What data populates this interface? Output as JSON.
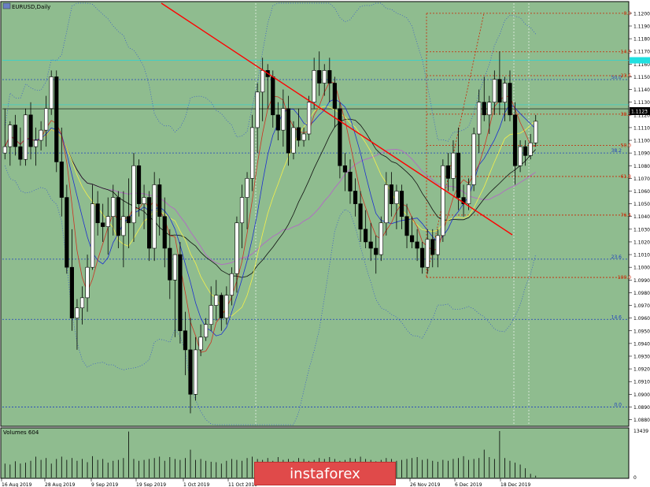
{
  "window": {
    "symbol_title": "EURUSD,Daily",
    "volume_title": "Volumes 604",
    "brand": "instaforex"
  },
  "colors": {
    "chart_bg": "#8fbc8f",
    "up_candle": "#ffffff",
    "down_candle": "#000000",
    "trendline": "#ff0000",
    "fib_red": "#cc2200",
    "fib_blue": "#1f3fbf",
    "ma_red": "#cc3322",
    "ma_blue": "#1c2fd0",
    "ma_yellow": "#f4f04a",
    "ma_black": "#111111",
    "ma_purple": "#b070c0",
    "bollinger": "#3050d0",
    "price_tag": "#20e0e0",
    "brand_bg": "#e04a4a"
  },
  "price_axis": {
    "labels": [
      "1.1200",
      "1.1190",
      "1.1180",
      "1.1170",
      "1.1160",
      "1.1150",
      "1.1140",
      "1.1130",
      "1.1120",
      "1.1110",
      "1.1100",
      "1.1090",
      "1.1080",
      "1.1070",
      "1.1060",
      "1.1050",
      "1.1040",
      "1.1030",
      "1.1020",
      "1.1010",
      "1.1000",
      "1.0990",
      "1.0980",
      "1.0970",
      "1.0960",
      "1.0950",
      "1.0940",
      "1.0930",
      "1.0920",
      "1.0910",
      "1.0900",
      "1.0890",
      "1.0880"
    ],
    "current_price": "1.1123"
  },
  "volume_axis": {
    "labels": [
      "13439",
      "0"
    ]
  },
  "time_axis": {
    "labels": [
      "16 Aug 2019",
      "28 Aug 2019",
      "9 Sep 2019",
      "19 Sep 2019",
      "1 Oct 2019",
      "11 Oct 2019",
      "26 Nov 2019",
      "6 Dec 2019",
      "18 Dec 2019"
    ]
  },
  "fib_levels_right": [
    {
      "label": "0.0",
      "price": 1.12,
      "color": "red"
    },
    {
      "label": "14.6",
      "price": 1.11697,
      "color": "red"
    },
    {
      "label": "23.6",
      "price": 1.11509,
      "color": "red"
    },
    {
      "label": "38.2",
      "price": 1.11206,
      "color": "red"
    },
    {
      "label": "50.0",
      "price": 1.1096,
      "color": "red"
    },
    {
      "label": "61.8",
      "price": 1.10715,
      "color": "red"
    },
    {
      "label": "76.4",
      "price": 1.10411,
      "color": "red"
    },
    {
      "label": "100.0",
      "price": 1.0992,
      "color": "red"
    }
  ],
  "fib_levels_blue": [
    {
      "label": "50.0",
      "price": 1.11478
    },
    {
      "label": "38.2",
      "price": 1.109
    },
    {
      "label": "23.6",
      "price": 1.10064
    },
    {
      "label": "14.6",
      "price": 1.0959
    },
    {
      "label": "0.0",
      "price": 1.089
    }
  ],
  "chart_data": {
    "type": "candlestick",
    "symbol": "EURUSD",
    "timeframe": "Daily",
    "ylim": [
      1.0876,
      1.1208
    ],
    "candles": [
      [
        1.109,
        1.1125,
        1.1085,
        1.1095
      ],
      [
        1.1095,
        1.1115,
        1.108,
        1.1112
      ],
      [
        1.1112,
        1.112,
        1.1088,
        1.1095
      ],
      [
        1.1095,
        1.111,
        1.108,
        1.1085
      ],
      [
        1.1085,
        1.1125,
        1.108,
        1.112
      ],
      [
        1.112,
        1.113,
        1.1085,
        1.1095
      ],
      [
        1.1095,
        1.111,
        1.108,
        1.11
      ],
      [
        1.11,
        1.1115,
        1.1092,
        1.1108
      ],
      [
        1.1108,
        1.1135,
        1.1095,
        1.1125
      ],
      [
        1.1125,
        1.1155,
        1.112,
        1.115
      ],
      [
        1.115,
        1.1155,
        1.1075,
        1.1083
      ],
      [
        1.1083,
        1.111,
        1.104,
        1.1055
      ],
      [
        1.1055,
        1.1065,
        1.0995,
        1.1
      ],
      [
        1.1,
        1.103,
        1.095,
        1.096
      ],
      [
        1.096,
        1.0975,
        1.0935,
        1.0968
      ],
      [
        1.0968,
        1.0985,
        1.0955,
        1.0976
      ],
      [
        1.0976,
        1.101,
        1.0965,
        1.1
      ],
      [
        1.1,
        1.1065,
        1.0998,
        1.105
      ],
      [
        1.105,
        1.106,
        1.1025,
        1.1035
      ],
      [
        1.1035,
        1.105,
        1.102,
        1.1032
      ],
      [
        1.1032,
        1.1055,
        1.101,
        1.104
      ],
      [
        1.104,
        1.1065,
        1.1025,
        1.1055
      ],
      [
        1.1055,
        1.106,
        1.1015,
        1.1025
      ],
      [
        1.1025,
        1.106,
        1.1,
        1.104
      ],
      [
        1.104,
        1.107,
        1.1015,
        1.1035
      ],
      [
        1.1035,
        1.109,
        1.102,
        1.108
      ],
      [
        1.108,
        1.1085,
        1.104,
        1.105
      ],
      [
        1.105,
        1.1065,
        1.103,
        1.1055
      ],
      [
        1.1055,
        1.106,
        1.1005,
        1.1015
      ],
      [
        1.1015,
        1.1075,
        1.1005,
        1.1065
      ],
      [
        1.1065,
        1.107,
        1.1025,
        1.104
      ],
      [
        1.104,
        1.1055,
        1.1,
        1.1015
      ],
      [
        1.1015,
        1.103,
        1.0975,
        1.099
      ],
      [
        1.099,
        1.101,
        1.0945,
        1.101
      ],
      [
        1.101,
        1.102,
        1.094,
        1.095
      ],
      [
        1.095,
        1.0965,
        1.0915,
        1.0935
      ],
      [
        1.0935,
        1.096,
        1.0885,
        1.09
      ],
      [
        1.09,
        1.0945,
        1.0895,
        1.0935
      ],
      [
        1.0935,
        1.0955,
        1.093,
        1.0945
      ],
      [
        1.0945,
        1.096,
        1.0942,
        1.0955
      ],
      [
        1.0955,
        1.0985,
        1.095,
        1.097
      ],
      [
        1.097,
        1.099,
        1.0958,
        1.0978
      ],
      [
        1.0978,
        1.098,
        1.095,
        1.096
      ],
      [
        1.096,
        1.0985,
        1.0955,
        1.0978
      ],
      [
        1.0978,
        1.1,
        1.097,
        1.0995
      ],
      [
        1.0995,
        1.104,
        1.098,
        1.1035
      ],
      [
        1.1035,
        1.1065,
        1.1015,
        1.1055
      ],
      [
        1.1055,
        1.1075,
        1.103,
        1.107
      ],
      [
        1.107,
        1.112,
        1.106,
        1.111
      ],
      [
        1.111,
        1.1145,
        1.109,
        1.1138
      ],
      [
        1.1138,
        1.1165,
        1.1115,
        1.1155
      ],
      [
        1.1155,
        1.116,
        1.1125,
        1.115
      ],
      [
        1.115,
        1.1155,
        1.111,
        1.112
      ],
      [
        1.112,
        1.113,
        1.11,
        1.1108
      ],
      [
        1.1108,
        1.114,
        1.1095,
        1.1125
      ],
      [
        1.1125,
        1.1135,
        1.108,
        1.109
      ],
      [
        1.109,
        1.1115,
        1.1085,
        1.111
      ],
      [
        1.111,
        1.1125,
        1.1095,
        1.11
      ],
      [
        1.11,
        1.111,
        1.1095,
        1.1105
      ],
      [
        1.1105,
        1.1135,
        1.11,
        1.113
      ],
      [
        1.113,
        1.1165,
        1.1125,
        1.1155
      ],
      [
        1.1155,
        1.117,
        1.1135,
        1.1145
      ],
      [
        1.1145,
        1.116,
        1.1135,
        1.1155
      ],
      [
        1.1155,
        1.1165,
        1.113,
        1.1145
      ],
      [
        1.1145,
        1.115,
        1.111,
        1.1125
      ],
      [
        1.1125,
        1.113,
        1.107,
        1.108
      ],
      [
        1.108,
        1.109,
        1.106,
        1.1075
      ],
      [
        1.1075,
        1.1085,
        1.105,
        1.106
      ],
      [
        1.106,
        1.107,
        1.104,
        1.105
      ],
      [
        1.105,
        1.106,
        1.102,
        1.103
      ],
      [
        1.103,
        1.1045,
        1.1015,
        1.102
      ],
      [
        1.102,
        1.1035,
        1.1005,
        1.1015
      ],
      [
        1.1015,
        1.1025,
        1.0995,
        1.101
      ],
      [
        1.101,
        1.104,
        1.1005,
        1.1035
      ],
      [
        1.1035,
        1.1075,
        1.1025,
        1.1065
      ],
      [
        1.1065,
        1.1075,
        1.104,
        1.105
      ],
      [
        1.105,
        1.1065,
        1.103,
        1.106
      ],
      [
        1.106,
        1.1065,
        1.103,
        1.104
      ],
      [
        1.104,
        1.105,
        1.1015,
        1.1025
      ],
      [
        1.1025,
        1.104,
        1.1015,
        1.102
      ],
      [
        1.102,
        1.103,
        1.1005,
        1.1015
      ],
      [
        1.1015,
        1.102,
        1.0995,
        1.1
      ],
      [
        1.1,
        1.103,
        1.0995,
        1.1022
      ],
      [
        1.1022,
        1.103,
        1.1,
        1.101
      ],
      [
        1.101,
        1.103,
        1.1,
        1.1025
      ],
      [
        1.1025,
        1.1085,
        1.102,
        1.108
      ],
      [
        1.108,
        1.109,
        1.106,
        1.107
      ],
      [
        1.107,
        1.11,
        1.106,
        1.109
      ],
      [
        1.109,
        1.111,
        1.1045,
        1.1055
      ],
      [
        1.1055,
        1.1065,
        1.104,
        1.105
      ],
      [
        1.105,
        1.107,
        1.1045,
        1.1065
      ],
      [
        1.1065,
        1.111,
        1.106,
        1.1105
      ],
      [
        1.1105,
        1.114,
        1.109,
        1.113
      ],
      [
        1.113,
        1.115,
        1.1115,
        1.112
      ],
      [
        1.112,
        1.1135,
        1.1105,
        1.113
      ],
      [
        1.113,
        1.1155,
        1.112,
        1.1148
      ],
      [
        1.1148,
        1.117,
        1.112,
        1.113
      ],
      [
        1.113,
        1.115,
        1.1115,
        1.1145
      ],
      [
        1.1145,
        1.1155,
        1.1115,
        1.112
      ],
      [
        1.112,
        1.113,
        1.1065,
        1.108
      ],
      [
        1.108,
        1.11,
        1.1075,
        1.1095
      ],
      [
        1.1095,
        1.11,
        1.108,
        1.1088
      ],
      [
        1.1088,
        1.1105,
        1.1085,
        1.1098
      ],
      [
        1.1098,
        1.112,
        1.1095,
        1.1115
      ]
    ],
    "volumes": [
      0.3,
      0.28,
      0.35,
      0.3,
      0.32,
      0.36,
      0.45,
      0.38,
      0.42,
      0.3,
      0.4,
      0.45,
      0.38,
      0.42,
      0.36,
      0.4,
      0.33,
      0.46,
      0.38,
      0.4,
      0.32,
      0.36,
      0.38,
      0.42,
      0.99,
      0.4,
      0.36,
      0.38,
      0.4,
      0.42,
      0.45,
      0.36,
      0.44,
      0.4,
      0.38,
      0.42,
      0.6,
      0.38,
      0.4,
      0.36,
      0.34,
      0.33,
      0.3,
      0.36,
      0.4,
      0.38,
      0.36,
      0.42,
      0.45,
      0.4,
      0.38,
      0.42,
      0.36,
      0.44,
      0.38,
      0.4,
      0.36,
      0.42,
      0.4,
      0.36,
      0.38,
      0.42,
      0.4,
      0.44,
      0.4,
      0.36,
      0.38,
      0.42,
      0.4,
      0.45,
      0.4,
      0.38,
      0.35,
      0.38,
      0.42,
      0.4,
      0.36,
      0.38,
      0.4,
      0.42,
      0.44,
      0.38,
      0.4,
      0.36,
      0.34,
      0.38,
      0.36,
      0.4,
      0.42,
      0.46,
      0.38,
      0.4,
      0.42,
      0.6,
      0.44,
      0.4,
      1.0,
      0.42,
      0.36,
      0.32,
      0.28,
      0.2,
      0.08,
      0.04
    ]
  }
}
